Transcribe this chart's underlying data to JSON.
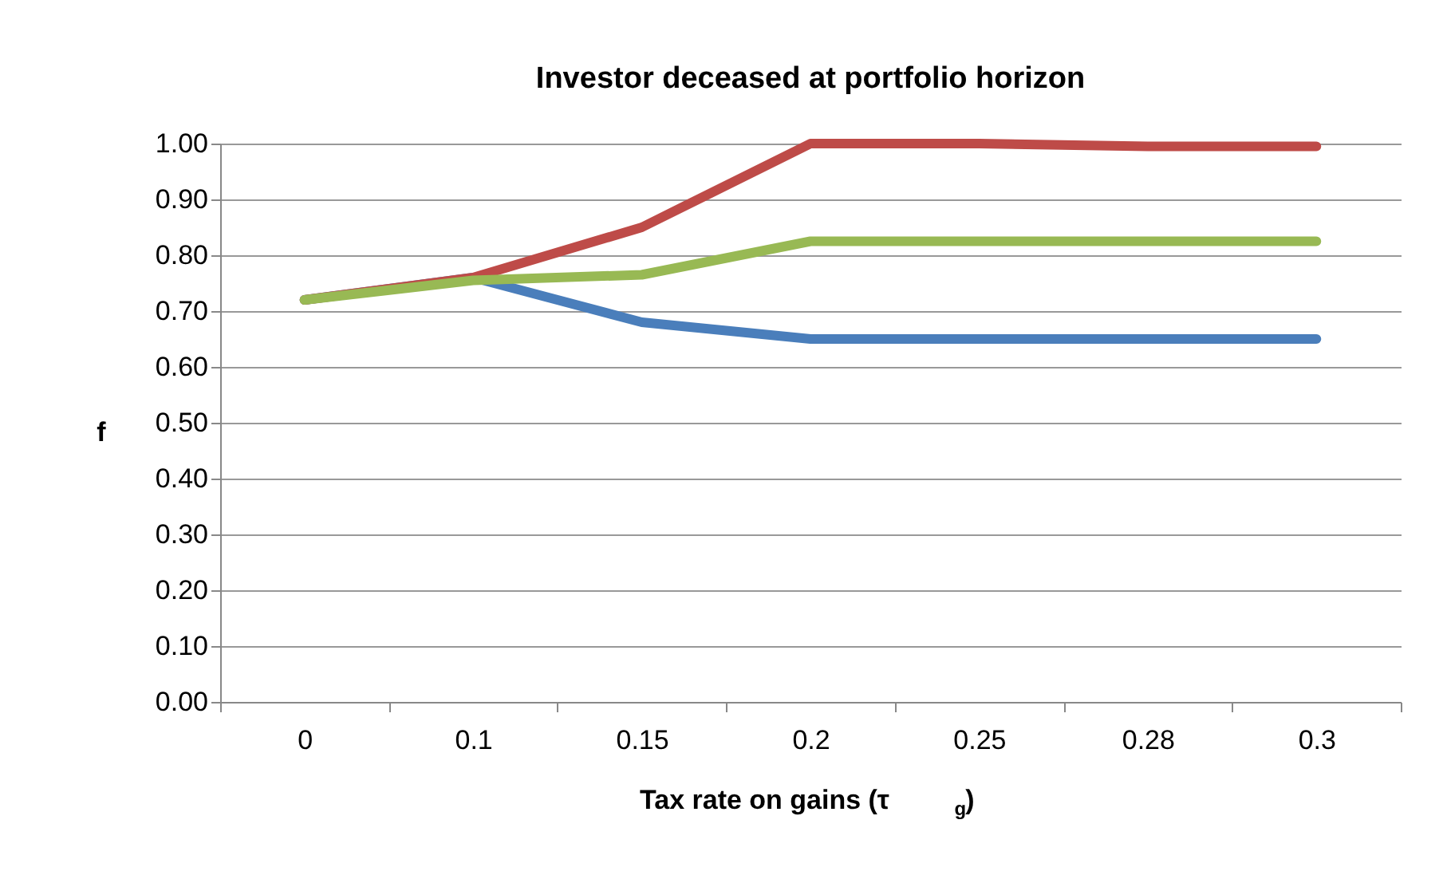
{
  "chart_data": {
    "type": "line",
    "title": "Investor deceased at portfolio horizon",
    "xlabel": "Tax rate on gains (τ$_{g}$)",
    "ylabel": "f",
    "categories": [
      "0",
      "0.1",
      "0.15",
      "0.2",
      "0.25",
      "0.28",
      "0.3"
    ],
    "series": [
      {
        "color": "#4a7ebb",
        "values": [
          0.72,
          0.76,
          0.68,
          0.65,
          0.65,
          0.65,
          0.65
        ]
      },
      {
        "color": "#be4b48",
        "values": [
          0.72,
          0.76,
          0.85,
          1.0,
          1.0,
          0.995,
          0.995
        ]
      },
      {
        "color": "#98b954",
        "values": [
          0.72,
          0.755,
          0.765,
          0.825,
          0.825,
          0.825,
          0.825
        ]
      }
    ],
    "ylim": [
      0,
      1
    ],
    "yticks": [
      {
        "value": 0,
        "label": "0.00"
      },
      {
        "value": 0.1,
        "label": "0.10"
      },
      {
        "value": 0.2,
        "label": "0.20"
      },
      {
        "value": 0.3,
        "label": "0.30"
      },
      {
        "value": 0.4,
        "label": "0.40"
      },
      {
        "value": 0.5,
        "label": "0.50"
      },
      {
        "value": 0.6,
        "label": "0.60"
      },
      {
        "value": 0.7,
        "label": "0.70"
      },
      {
        "value": 0.8,
        "label": "0.80"
      },
      {
        "value": 0.9,
        "label": "0.90"
      },
      {
        "value": 1,
        "label": "1.00"
      }
    ],
    "grid": "y",
    "marker": "none",
    "line_style": "solid"
  }
}
